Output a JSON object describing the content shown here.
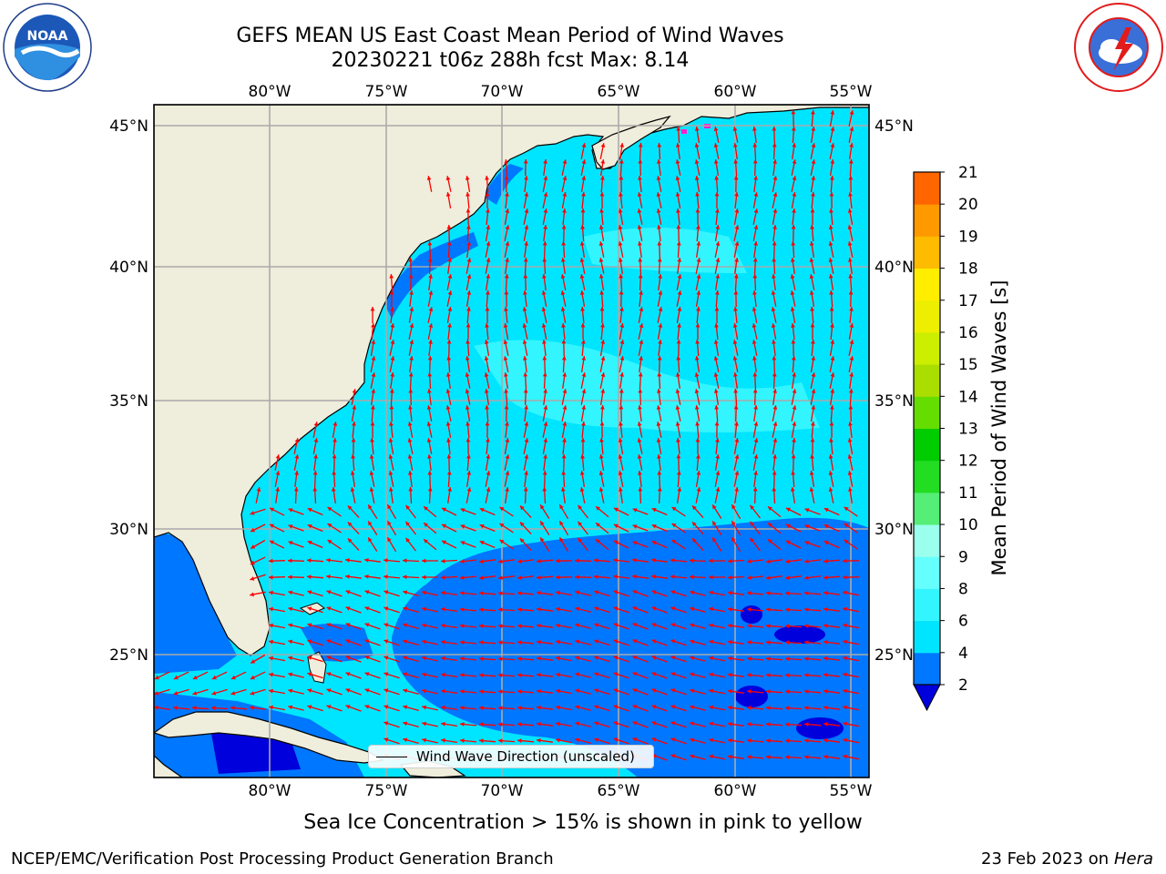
{
  "title_line1": "GEFS MEAN US East Coast Mean Period of Wind Waves",
  "title_line2": "20230221 t06z 288h fcst   Max: 8.14",
  "longitude_ticks": [
    "80°W",
    "75°W",
    "70°W",
    "65°W",
    "60°W",
    "55°W"
  ],
  "latitude_ticks": [
    "45°N",
    "40°N",
    "35°N",
    "30°N",
    "25°N"
  ],
  "colorbar": {
    "label": "Mean Period of Wind Waves [s]",
    "ticks": [
      "2",
      "4",
      "6",
      "8",
      "9",
      "10",
      "11",
      "12",
      "13",
      "14",
      "15",
      "16",
      "17",
      "18",
      "19",
      "20",
      "21"
    ],
    "colors": [
      "#0077ff",
      "#00e5ff",
      "#33f5ff",
      "#66ffff",
      "#9bffee",
      "#55ee77",
      "#22dd22",
      "#00cc00",
      "#66dd00",
      "#aadd00",
      "#ccee00",
      "#eeee00",
      "#ffee00",
      "#ffbb00",
      "#ff9900",
      "#ff6600",
      "#ff3300",
      "#ff1100"
    ],
    "below_color": "#0000dd"
  },
  "wind_legend_label": "Wind Wave Direction (unscaled)",
  "ice_note": "Sea Ice Concentration > 15% is shown in pink to yellow",
  "footer_left": "NCEP/EMC/Verification Post Processing Product Generation Branch",
  "footer_right_date": "23 Feb 2023 on",
  "footer_right_machine": "Hera",
  "logos": {
    "left": "NOAA",
    "right": "NATIONAL WEATHER SERVICE"
  },
  "colors": {
    "land": "#efeddb",
    "ocean_light": "#00e5ff",
    "ocean_dark": "#0077ff",
    "arrow": "#ff0000",
    "grid": "#aaaaaa"
  }
}
